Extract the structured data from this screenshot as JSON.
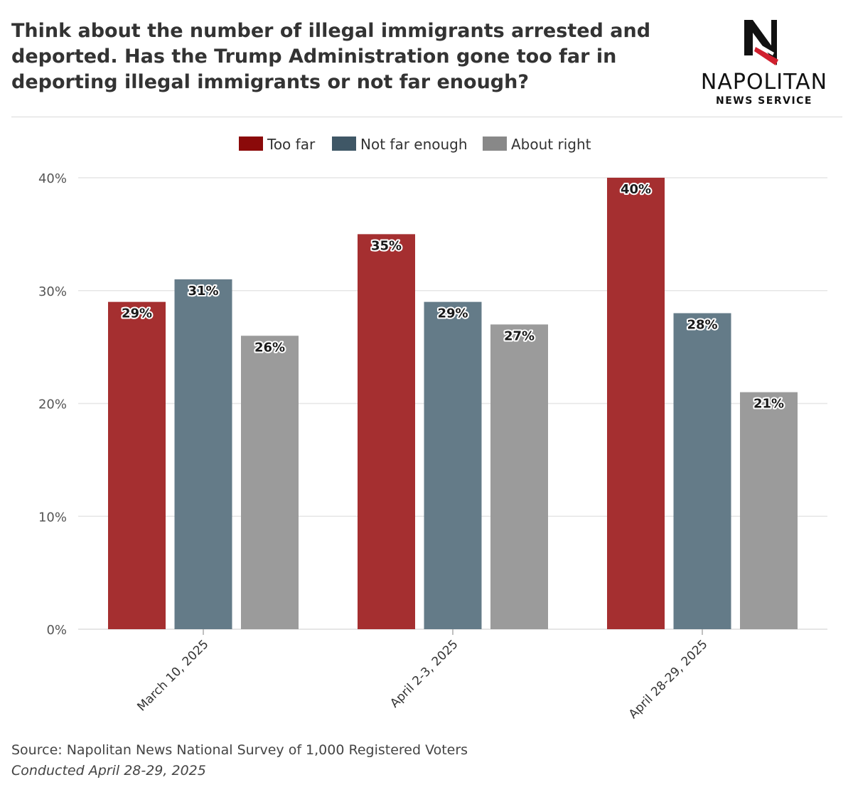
{
  "header": {
    "title": "Think about the number of illegal immigrants arrested and deported. Has the Trump Administration gone too far in deporting illegal immigrants or not far enough?"
  },
  "logo": {
    "letter": "N",
    "name": "NAPOLITAN",
    "subname": "NEWS SERVICE"
  },
  "colors": {
    "too_far": "#a52f30",
    "not_far_enough": "#647b88",
    "about_right": "#9b9b9b",
    "legend_too_far": "#8b0a0a",
    "legend_not_far_enough": "#3f5766",
    "legend_about_right": "#888888",
    "grid": "#e6e6e6",
    "logo_red": "#d0202e"
  },
  "chart_data": {
    "type": "bar",
    "categories": [
      "March 10, 2025",
      "April 2-3, 2025",
      "April 28-29, 2025"
    ],
    "series": [
      {
        "name": "Too far",
        "values": [
          29,
          35,
          40
        ],
        "labels": [
          "29%",
          "35%",
          "40%"
        ]
      },
      {
        "name": "Not far enough",
        "values": [
          31,
          29,
          28
        ],
        "labels": [
          "31%",
          "29%",
          "28%"
        ]
      },
      {
        "name": "About right",
        "values": [
          26,
          27,
          21
        ],
        "labels": [
          "26%",
          "27%",
          "21%"
        ]
      }
    ],
    "yticks": [
      0,
      10,
      20,
      30,
      40
    ],
    "ytick_labels": [
      "0%",
      "10%",
      "20%",
      "30%",
      "40%"
    ],
    "ylim": [
      0,
      40
    ],
    "grid": true,
    "legend_position": "top-center"
  },
  "footer": {
    "source": "Source: Napolitan News National Survey of 1,000 Registered Voters",
    "conducted": "Conducted April 28-29, 2025"
  }
}
